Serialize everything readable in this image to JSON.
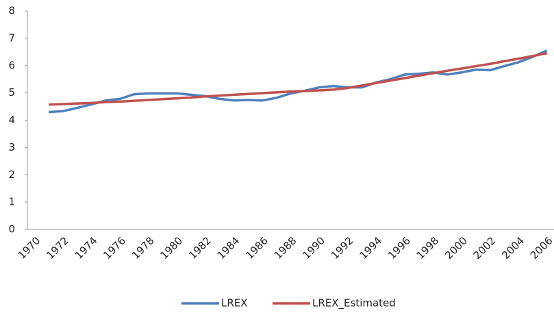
{
  "chart_data": {
    "type": "line",
    "categories": [
      "1970",
      null,
      "1972",
      null,
      "1974",
      null,
      "1976",
      null,
      "1978",
      null,
      "1980",
      null,
      "1982",
      null,
      "1984",
      null,
      "1986",
      null,
      "1988",
      null,
      "1990",
      null,
      "1992",
      null,
      "1994",
      null,
      "1996",
      null,
      "1998",
      null,
      "2000",
      null,
      "2002",
      null,
      "2004",
      null,
      "2006"
    ],
    "series": [
      {
        "name": "LREX",
        "color": "#4f81bd",
        "values": [
          null,
          4.3,
          4.33,
          4.45,
          4.58,
          4.72,
          4.78,
          4.95,
          4.98,
          4.98,
          4.98,
          4.93,
          4.88,
          4.78,
          4.72,
          4.74,
          4.72,
          4.82,
          4.98,
          5.08,
          5.2,
          5.25,
          5.2,
          5.2,
          5.38,
          5.5,
          5.67,
          5.7,
          5.75,
          5.67,
          5.75,
          5.85,
          5.83,
          5.98,
          6.12,
          6.32,
          6.55
        ]
      },
      {
        "name": "LREX_Estimated",
        "color": "#c0504d",
        "values": [
          null,
          4.57,
          4.59,
          4.61,
          4.63,
          4.66,
          4.68,
          4.71,
          4.74,
          4.77,
          4.8,
          4.83,
          4.87,
          4.9,
          4.93,
          4.96,
          4.99,
          5.02,
          5.05,
          5.07,
          5.09,
          5.12,
          5.18,
          5.27,
          5.36,
          5.45,
          5.54,
          5.63,
          5.72,
          5.81,
          5.89,
          5.98,
          6.06,
          6.16,
          6.25,
          6.35,
          6.45
        ]
      }
    ],
    "ylim": [
      0,
      8
    ],
    "yticks": [
      0,
      1,
      2,
      3,
      4,
      5,
      6,
      7,
      8
    ],
    "grid": false,
    "legend": "bottom"
  }
}
